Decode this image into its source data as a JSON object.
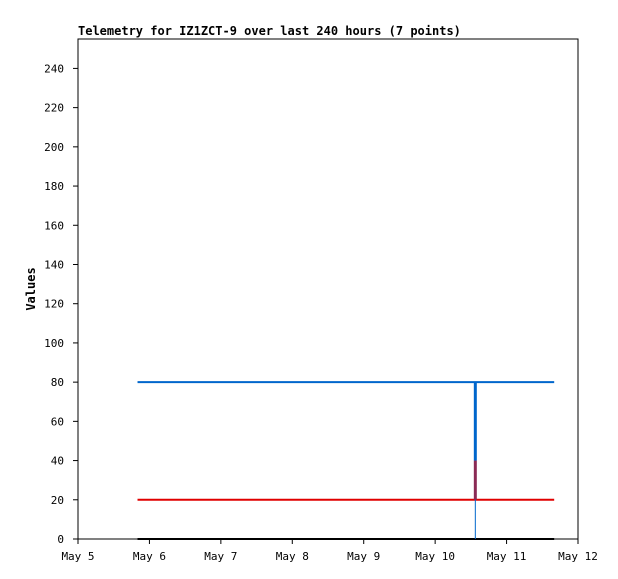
{
  "chart_data": {
    "type": "line",
    "title": "Telemetry for IZ1ZCT-9 over last 240 hours (7 points)",
    "xlabel": "",
    "ylabel": "Values",
    "xlim": [
      "2024-05-05T00:00",
      "2024-05-12T00:00"
    ],
    "ylim": [
      0,
      255
    ],
    "x_ticks": [
      {
        "x": "2024-05-05T00:00",
        "label": "May 5"
      },
      {
        "x": "2024-05-06T00:00",
        "label": "May 6"
      },
      {
        "x": "2024-05-07T00:00",
        "label": "May 7"
      },
      {
        "x": "2024-05-08T00:00",
        "label": "May 8"
      },
      {
        "x": "2024-05-09T00:00",
        "label": "May 9"
      },
      {
        "x": "2024-05-10T00:00",
        "label": "May 10"
      },
      {
        "x": "2024-05-11T00:00",
        "label": "May 11"
      },
      {
        "x": "2024-05-12T00:00",
        "label": "May 12"
      }
    ],
    "y_ticks": [
      0,
      20,
      40,
      60,
      80,
      100,
      120,
      140,
      160,
      180,
      200,
      220,
      240
    ],
    "grid": false,
    "legend": "none",
    "series": [
      {
        "color": "#000000",
        "points": [
          [
            "2024-05-05T20:00",
            0
          ],
          [
            "2024-05-11T16:00",
            0
          ]
        ]
      },
      {
        "color": "#e00000",
        "points": [
          [
            "2024-05-05T20:00",
            20
          ],
          [
            "2024-05-11T16:00",
            20
          ]
        ]
      },
      {
        "color": "#0066cc",
        "points": [
          [
            "2024-05-05T20:00",
            80
          ],
          [
            "2024-05-11T16:00",
            80
          ]
        ]
      }
    ],
    "spikes": [
      {
        "color": "#0066cc",
        "x": "2024-05-10T13:30",
        "from": 0,
        "to": 80,
        "width": 1
      },
      {
        "color": "#0066cc",
        "x": "2024-05-10T13:30",
        "from": 40,
        "to": 80,
        "width": 3
      },
      {
        "color": "#8b2a55",
        "x": "2024-05-10T13:30",
        "from": 20,
        "to": 40,
        "width": 3
      }
    ]
  }
}
